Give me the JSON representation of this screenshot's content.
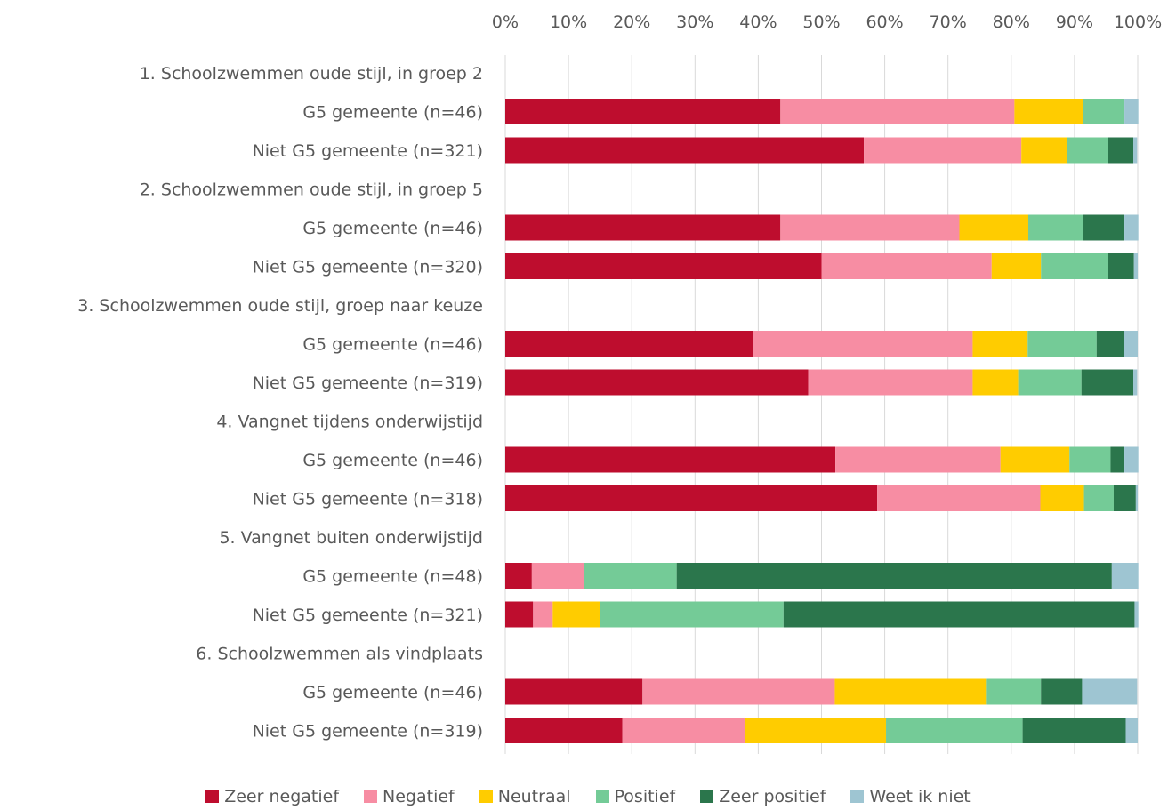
{
  "chart_data": {
    "type": "bar",
    "orientation": "horizontal",
    "stacked": "percent",
    "title": "",
    "xlabel": "",
    "ylabel": "",
    "xlim": [
      0,
      100
    ],
    "x_ticks": [
      "0%",
      "10%",
      "20%",
      "30%",
      "40%",
      "50%",
      "60%",
      "70%",
      "80%",
      "90%",
      "100%"
    ],
    "x_tick_position": "top",
    "grid": true,
    "legend_position": "bottom",
    "series_meta": [
      {
        "name": "Zeer negatief",
        "color": "#BE0D2E"
      },
      {
        "name": "Negatief",
        "color": "#F78DA3"
      },
      {
        "name": "Neutraal",
        "color": "#FFCC00"
      },
      {
        "name": "Positief",
        "color": "#74CB97"
      },
      {
        "name": "Zeer positief",
        "color": "#2B764C"
      },
      {
        "name": "Weet ik niet",
        "color": "#9EC5D2"
      }
    ],
    "rows": [
      {
        "label": "1. Schoolzwemmen oude stijl, in groep 2",
        "header": true
      },
      {
        "label": "G5 gemeente (n=46)",
        "values": [
          43.5,
          37.0,
          10.9,
          6.5,
          0,
          2.2
        ]
      },
      {
        "label": "Niet G5 gemeente (n=321)",
        "values": [
          56.7,
          24.9,
          7.2,
          6.5,
          4.0,
          0.6
        ]
      },
      {
        "label": "2. Schoolzwemmen oude stijl, in groep 5",
        "header": true
      },
      {
        "label": "G5 gemeente (n=46)",
        "values": [
          43.5,
          28.3,
          10.9,
          8.7,
          6.5,
          2.2
        ]
      },
      {
        "label": "Niet G5 gemeente (n=320)",
        "values": [
          50.0,
          26.9,
          7.8,
          10.6,
          4.1,
          0.6
        ]
      },
      {
        "label": "3. Schoolzwemmen oude stijl, groep naar keuze",
        "header": true
      },
      {
        "label": "G5 gemeente  (n=46)",
        "values": [
          39.1,
          34.8,
          8.7,
          10.9,
          4.3,
          2.2
        ]
      },
      {
        "label": "Niet G5 gemeente (n=319)",
        "values": [
          47.9,
          26.0,
          7.2,
          10.0,
          8.2,
          0.6
        ]
      },
      {
        "label": "4. Vangnet tijdens onderwijstijd",
        "header": true
      },
      {
        "label": "G5 gemeente (n=46)",
        "values": [
          52.2,
          26.1,
          10.9,
          6.5,
          2.2,
          2.2
        ]
      },
      {
        "label": "Niet G5 gemeente (n=318)",
        "values": [
          58.8,
          25.8,
          6.9,
          4.7,
          3.5,
          0.3
        ]
      },
      {
        "label": "5. Vangnet buiten onderwijstijd",
        "header": true
      },
      {
        "label": "G5 gemeente (n=48)",
        "values": [
          4.2,
          8.3,
          0,
          14.6,
          68.8,
          4.2
        ]
      },
      {
        "label": "Niet G5 gemeente (n=321)",
        "values": [
          4.4,
          3.1,
          7.5,
          29.0,
          55.5,
          0.6
        ]
      },
      {
        "label": "6. Schoolzwemmen als vindplaats",
        "header": true
      },
      {
        "label": "G5 gemeente (n=46)",
        "values": [
          21.7,
          30.4,
          23.9,
          8.7,
          6.5,
          8.7
        ]
      },
      {
        "label": "Niet G5 gemeente (n=319)",
        "values": [
          18.5,
          19.4,
          22.3,
          21.6,
          16.3,
          1.9
        ]
      }
    ]
  }
}
